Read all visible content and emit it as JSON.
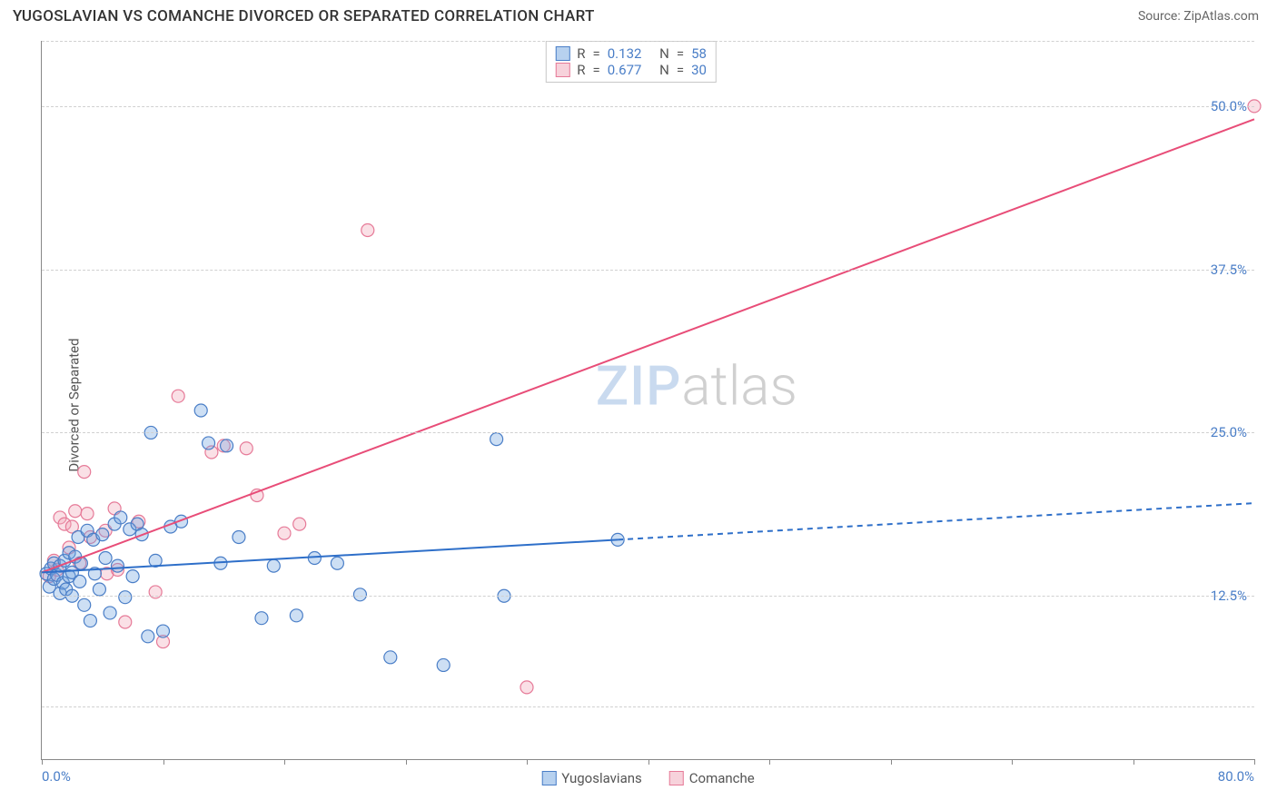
{
  "header": {
    "title": "YUGOSLAVIAN VS COMANCHE DIVORCED OR SEPARATED CORRELATION CHART",
    "source_prefix": "Source: ",
    "source_name": "ZipAtlas.com"
  },
  "ylabel": "Divorced or Separated",
  "watermark": {
    "left": "ZIP",
    "right": "atlas"
  },
  "chart": {
    "type": "scatter",
    "background_color": "#ffffff",
    "grid_color": "#d0d0d0",
    "axis_color": "#888888",
    "label_color": "#4a7ec7",
    "text_color": "#555555",
    "title_fontsize": 17,
    "label_fontsize": 15,
    "xlim": [
      0,
      80
    ],
    "ylim": [
      0,
      55
    ],
    "xaxis_min_label": "0.0%",
    "xaxis_max_label": "80.0%",
    "yticks": [
      {
        "value": 12.5,
        "label": "12.5%"
      },
      {
        "value": 25.0,
        "label": "25.0%"
      },
      {
        "value": 37.5,
        "label": "37.5%"
      },
      {
        "value": 50.0,
        "label": "50.0%"
      }
    ],
    "extra_gridlines": [
      4.0,
      55.0
    ],
    "xticks_minor": [
      0,
      8,
      16,
      24,
      32,
      40,
      48,
      56,
      64,
      72,
      80
    ],
    "marker_radius": 7,
    "marker_stroke_width": 1.2,
    "marker_fill_opacity": 0.35,
    "trend_line_width": 2
  },
  "series": {
    "yugoslavians": {
      "label": "Yugoslavians",
      "color": "#6fa3e0",
      "stroke": "#4a7ec7",
      "line_color": "#2e6fc9",
      "R": "0.132",
      "N": "58",
      "trend": {
        "x1": 0,
        "y1": 14.3,
        "x2": 38,
        "y2": 16.8,
        "x3": 80,
        "y3": 19.6
      },
      "points": [
        [
          0.3,
          14.2
        ],
        [
          0.5,
          13.2
        ],
        [
          0.6,
          14.6
        ],
        [
          0.8,
          15.0
        ],
        [
          0.8,
          13.8
        ],
        [
          1.0,
          14.1
        ],
        [
          1.2,
          12.7
        ],
        [
          1.2,
          14.8
        ],
        [
          1.4,
          13.5
        ],
        [
          1.5,
          15.2
        ],
        [
          1.6,
          13.0
        ],
        [
          1.8,
          14.0
        ],
        [
          1.8,
          15.8
        ],
        [
          2.0,
          14.3
        ],
        [
          2.0,
          12.5
        ],
        [
          2.2,
          15.5
        ],
        [
          2.4,
          17.0
        ],
        [
          2.5,
          13.6
        ],
        [
          2.6,
          15.0
        ],
        [
          2.8,
          11.8
        ],
        [
          3.0,
          17.5
        ],
        [
          3.2,
          10.6
        ],
        [
          3.4,
          16.8
        ],
        [
          3.5,
          14.2
        ],
        [
          3.8,
          13.0
        ],
        [
          4.0,
          17.2
        ],
        [
          4.2,
          15.4
        ],
        [
          4.5,
          11.2
        ],
        [
          4.8,
          18.0
        ],
        [
          5.0,
          14.8
        ],
        [
          5.2,
          18.5
        ],
        [
          5.5,
          12.4
        ],
        [
          5.8,
          17.6
        ],
        [
          6.0,
          14.0
        ],
        [
          6.3,
          18.0
        ],
        [
          6.6,
          17.2
        ],
        [
          7.0,
          9.4
        ],
        [
          7.2,
          25.0
        ],
        [
          7.5,
          15.2
        ],
        [
          8.0,
          9.8
        ],
        [
          8.5,
          17.8
        ],
        [
          9.2,
          18.2
        ],
        [
          10.5,
          26.7
        ],
        [
          11.0,
          24.2
        ],
        [
          11.8,
          15.0
        ],
        [
          12.2,
          24.0
        ],
        [
          13.0,
          17.0
        ],
        [
          14.5,
          10.8
        ],
        [
          15.3,
          14.8
        ],
        [
          16.8,
          11.0
        ],
        [
          18.0,
          15.4
        ],
        [
          19.5,
          15.0
        ],
        [
          21.0,
          12.6
        ],
        [
          23.0,
          7.8
        ],
        [
          26.5,
          7.2
        ],
        [
          30.0,
          24.5
        ],
        [
          30.5,
          12.5
        ],
        [
          38.0,
          16.8
        ]
      ]
    },
    "comanche": {
      "label": "Comanche",
      "color": "#f0a5b8",
      "stroke": "#e67a98",
      "line_color": "#e84d78",
      "R": "0.677",
      "N": "30",
      "trend": {
        "x1": 0,
        "y1": 14.3,
        "x2": 80,
        "y2": 49.0
      },
      "points": [
        [
          0.5,
          14.0
        ],
        [
          0.8,
          15.2
        ],
        [
          1.0,
          14.5
        ],
        [
          1.2,
          18.5
        ],
        [
          1.5,
          18.0
        ],
        [
          1.8,
          16.2
        ],
        [
          2.0,
          17.8
        ],
        [
          2.2,
          19.0
        ],
        [
          2.5,
          15.0
        ],
        [
          2.8,
          22.0
        ],
        [
          3.0,
          18.8
        ],
        [
          3.2,
          17.0
        ],
        [
          4.2,
          17.5
        ],
        [
          4.3,
          14.2
        ],
        [
          4.8,
          19.2
        ],
        [
          5.0,
          14.5
        ],
        [
          5.5,
          10.5
        ],
        [
          6.4,
          18.2
        ],
        [
          7.5,
          12.8
        ],
        [
          8.0,
          9.0
        ],
        [
          9.0,
          27.8
        ],
        [
          11.2,
          23.5
        ],
        [
          12.0,
          24.0
        ],
        [
          13.5,
          23.8
        ],
        [
          14.2,
          20.2
        ],
        [
          16.0,
          17.3
        ],
        [
          17.0,
          18.0
        ],
        [
          21.5,
          40.5
        ],
        [
          32.0,
          5.5
        ],
        [
          80.0,
          50.0
        ]
      ]
    }
  },
  "stats_labels": {
    "R": "R",
    "eq": "=",
    "N": "N"
  }
}
